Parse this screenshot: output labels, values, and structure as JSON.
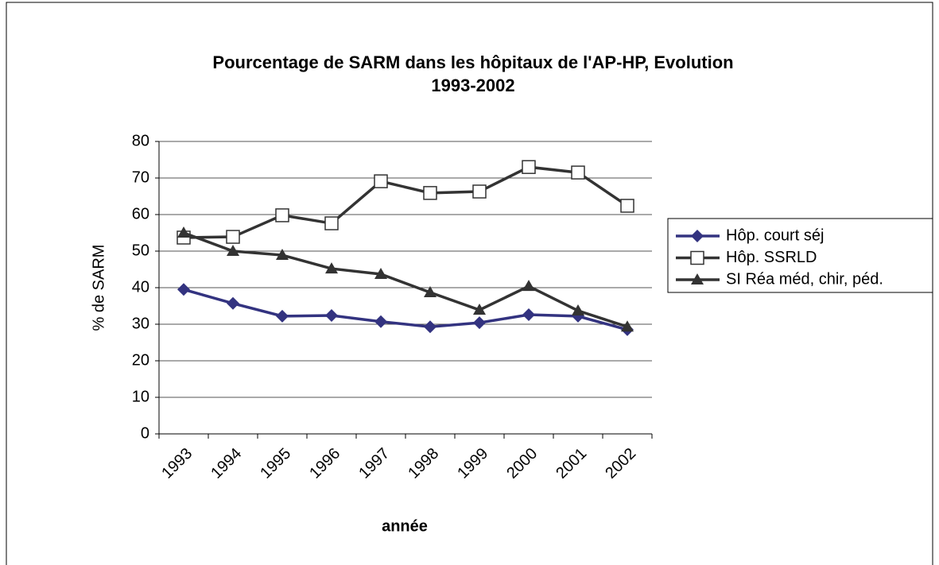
{
  "chart_data": {
    "type": "line",
    "title": [
      "Pourcentage de SARM dans les hôpitaux de l'AP-HP, Evolution",
      "1993-2002"
    ],
    "x_label": "année",
    "y_label": "% de SARM",
    "categories": [
      "1993",
      "1994",
      "1995",
      "1996",
      "1997",
      "1998",
      "1999",
      "2000",
      "2001",
      "2002"
    ],
    "series": [
      {
        "name": "Hôp. court séj",
        "color": "#333380",
        "marker": "diamond",
        "values": [
          39.5,
          35.7,
          32.2,
          32.4,
          30.7,
          29.3,
          30.4,
          32.6,
          32.2,
          28.5
        ]
      },
      {
        "name": "Hôp. SSRLD",
        "color": "#333333",
        "marker": "square",
        "values": [
          53.7,
          53.9,
          59.8,
          57.6,
          69.1,
          65.9,
          66.3,
          73.0,
          71.5,
          62.4
        ]
      },
      {
        "name": "SI Réa méd, chir, péd.",
        "color": "#333333",
        "marker": "triangle",
        "values": [
          55.0,
          50.0,
          48.9,
          45.2,
          43.7,
          38.7,
          33.9,
          40.4,
          33.7,
          29.3
        ]
      }
    ],
    "ylim": [
      0,
      80
    ],
    "yticks": [
      0,
      10,
      20,
      30,
      40,
      50,
      60,
      70,
      80
    ],
    "grid": true,
    "legend": "right"
  }
}
